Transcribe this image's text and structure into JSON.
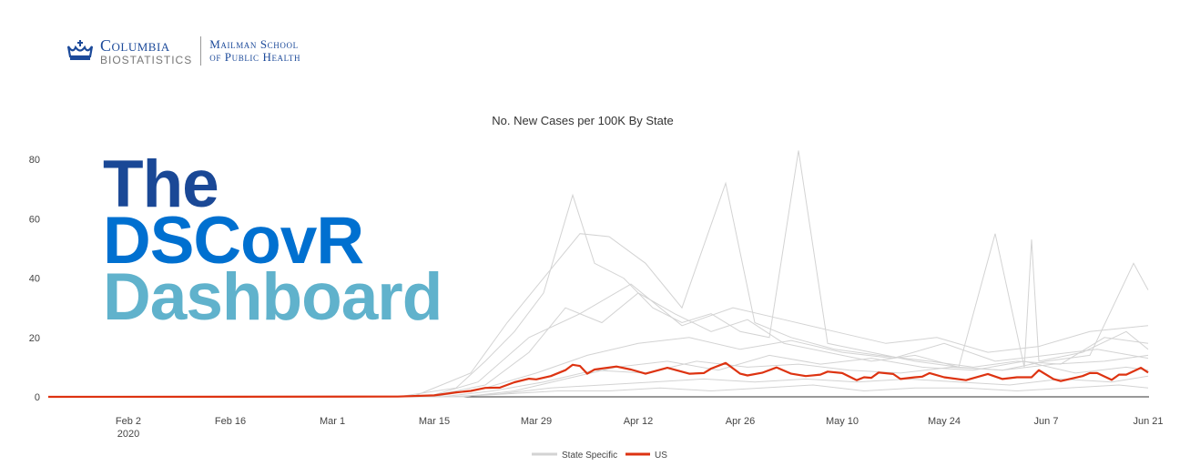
{
  "logo": {
    "university": "Columbia",
    "department": "BIOSTATISTICS",
    "school_line1": "Mailman School",
    "school_line2": "of Public Health"
  },
  "overlay": {
    "line1": "The",
    "line2": "DSCovR",
    "line3": "Dashboard",
    "colors": [
      "#1a4896",
      "#0070d0",
      "#60b2cc"
    ]
  },
  "chart_data": {
    "type": "line",
    "title": "No. New Cases per 100K By State",
    "xlabel": "",
    "ylabel": "",
    "xlim": [
      "2020-01-22",
      "2020-06-21"
    ],
    "ylim": [
      0,
      85
    ],
    "y_ticks": [
      0,
      20,
      40,
      60,
      80
    ],
    "x_ticks": [
      {
        "date": "2020-02-02",
        "label": "Feb 2",
        "sublabel": "2020"
      },
      {
        "date": "2020-02-16",
        "label": "Feb 16"
      },
      {
        "date": "2020-03-01",
        "label": "Mar 1"
      },
      {
        "date": "2020-03-15",
        "label": "Mar 15"
      },
      {
        "date": "2020-03-29",
        "label": "Mar 29"
      },
      {
        "date": "2020-04-12",
        "label": "Apr 12"
      },
      {
        "date": "2020-04-26",
        "label": "Apr 26"
      },
      {
        "date": "2020-05-10",
        "label": "May 10"
      },
      {
        "date": "2020-05-24",
        "label": "May 24"
      },
      {
        "date": "2020-06-07",
        "label": "Jun 7"
      },
      {
        "date": "2020-06-21",
        "label": "Jun 21"
      }
    ],
    "grid": false,
    "legend_position": "bottom",
    "legend": [
      {
        "name": "State Specific",
        "color": "#d3d3d3"
      },
      {
        "name": "US",
        "color": "#dd3311"
      }
    ],
    "state_series": [
      {
        "x": [
          "2020-01-22",
          "2020-03-10",
          "2020-03-18",
          "2020-03-22",
          "2020-03-26",
          "2020-03-30",
          "2020-04-03",
          "2020-04-06",
          "2020-04-10",
          "2020-04-14",
          "2020-04-18",
          "2020-04-22",
          "2020-04-26",
          "2020-04-30",
          "2020-05-04",
          "2020-05-08",
          "2020-05-14",
          "2020-05-20",
          "2020-05-26",
          "2020-06-01",
          "2020-06-07",
          "2020-06-13",
          "2020-06-19",
          "2020-06-21"
        ],
        "y": [
          0,
          0,
          3,
          12,
          22,
          35,
          68,
          45,
          40,
          30,
          25,
          28,
          22,
          20,
          83,
          18,
          15,
          12,
          10,
          9,
          12,
          14,
          45,
          36
        ]
      },
      {
        "x": [
          "2020-01-22",
          "2020-03-12",
          "2020-03-20",
          "2020-03-25",
          "2020-03-30",
          "2020-04-04",
          "2020-04-08",
          "2020-04-13",
          "2020-04-18",
          "2020-04-24",
          "2020-04-28",
          "2020-05-03",
          "2020-05-09",
          "2020-05-15",
          "2020-05-22",
          "2020-05-28",
          "2020-06-03",
          "2020-06-09",
          "2020-06-15",
          "2020-06-21"
        ],
        "y": [
          0,
          0,
          8,
          25,
          40,
          55,
          54,
          45,
          30,
          72,
          25,
          20,
          16,
          14,
          12,
          10,
          12,
          11,
          20,
          18
        ]
      },
      {
        "x": [
          "2020-01-22",
          "2020-03-14",
          "2020-03-22",
          "2020-03-28",
          "2020-04-02",
          "2020-04-07",
          "2020-04-12",
          "2020-04-17",
          "2020-04-22",
          "2020-04-27",
          "2020-05-02",
          "2020-05-08",
          "2020-05-14",
          "2020-05-20",
          "2020-05-26",
          "2020-05-31",
          "2020-06-04",
          "2020-06-05",
          "2020-06-06",
          "2020-06-12",
          "2020-06-18",
          "2020-06-21"
        ],
        "y": [
          0,
          0,
          4,
          15,
          30,
          25,
          35,
          28,
          22,
          26,
          18,
          15,
          12,
          14,
          10,
          55,
          10,
          53,
          12,
          15,
          22,
          16
        ]
      },
      {
        "x": [
          "2020-01-22",
          "2020-03-15",
          "2020-03-22",
          "2020-03-29",
          "2020-04-05",
          "2020-04-12",
          "2020-04-19",
          "2020-04-26",
          "2020-05-03",
          "2020-05-10",
          "2020-05-17",
          "2020-05-24",
          "2020-05-31",
          "2020-06-07",
          "2020-06-14",
          "2020-06-21"
        ],
        "y": [
          0,
          0,
          3,
          8,
          14,
          18,
          20,
          16,
          19,
          15,
          13,
          18,
          12,
          14,
          16,
          13
        ]
      },
      {
        "x": [
          "2020-01-22",
          "2020-03-16",
          "2020-03-23",
          "2020-03-30",
          "2020-04-06",
          "2020-04-13",
          "2020-04-20",
          "2020-04-27",
          "2020-05-04",
          "2020-05-11",
          "2020-05-18",
          "2020-05-25",
          "2020-06-01",
          "2020-06-08",
          "2020-06-15",
          "2020-06-21"
        ],
        "y": [
          0,
          0,
          2,
          5,
          9,
          8,
          12,
          10,
          11,
          9,
          8,
          10,
          9,
          11,
          12,
          14
        ]
      },
      {
        "x": [
          "2020-01-22",
          "2020-03-17",
          "2020-03-24",
          "2020-03-31",
          "2020-04-07",
          "2020-04-14",
          "2020-04-21",
          "2020-04-28",
          "2020-05-05",
          "2020-05-12",
          "2020-05-19",
          "2020-05-26",
          "2020-06-02",
          "2020-06-09",
          "2020-06-16",
          "2020-06-21"
        ],
        "y": [
          0,
          0,
          1,
          3,
          4,
          5,
          6,
          5,
          6,
          5,
          6,
          5,
          4,
          6,
          5,
          7
        ]
      },
      {
        "x": [
          "2020-01-22",
          "2020-03-18",
          "2020-03-25",
          "2020-04-01",
          "2020-04-08",
          "2020-04-15",
          "2020-04-22",
          "2020-04-29",
          "2020-05-06",
          "2020-05-13",
          "2020-05-20",
          "2020-05-27",
          "2020-06-03",
          "2020-06-10",
          "2020-06-17",
          "2020-06-21"
        ],
        "y": [
          0,
          0,
          1,
          2,
          2,
          3,
          2,
          3,
          4,
          2,
          3,
          3,
          2,
          3,
          4,
          3
        ]
      },
      {
        "x": [
          "2020-01-22",
          "2020-03-14",
          "2020-03-21",
          "2020-03-28",
          "2020-04-04",
          "2020-04-11",
          "2020-04-18",
          "2020-04-25",
          "2020-05-02",
          "2020-05-09",
          "2020-05-16",
          "2020-05-23",
          "2020-05-30",
          "2020-06-06",
          "2020-06-13",
          "2020-06-21"
        ],
        "y": [
          0,
          0,
          5,
          20,
          28,
          38,
          24,
          30,
          26,
          22,
          18,
          20,
          15,
          17,
          22,
          24
        ]
      },
      {
        "x": [
          "2020-01-22",
          "2020-03-19",
          "2020-03-26",
          "2020-04-02",
          "2020-04-09",
          "2020-04-16",
          "2020-04-23",
          "2020-04-30",
          "2020-05-07",
          "2020-05-14",
          "2020-05-21",
          "2020-05-28",
          "2020-06-04",
          "2020-06-11",
          "2020-06-18",
          "2020-06-21"
        ],
        "y": [
          0,
          0,
          2,
          6,
          10,
          12,
          9,
          14,
          11,
          13,
          10,
          9,
          12,
          8,
          10,
          9
        ]
      }
    ],
    "series": [
      {
        "name": "US",
        "x": [
          "2020-01-22",
          "2020-03-10",
          "2020-03-15",
          "2020-03-18",
          "2020-03-20",
          "2020-03-22",
          "2020-03-24",
          "2020-03-26",
          "2020-03-28",
          "2020-03-29",
          "2020-03-31",
          "2020-04-02",
          "2020-04-03",
          "2020-04-04",
          "2020-04-05",
          "2020-04-06",
          "2020-04-09",
          "2020-04-11",
          "2020-04-13",
          "2020-04-16",
          "2020-04-19",
          "2020-04-21",
          "2020-04-22",
          "2020-04-24",
          "2020-04-26",
          "2020-04-27",
          "2020-04-29",
          "2020-05-01",
          "2020-05-03",
          "2020-05-05",
          "2020-05-07",
          "2020-05-08",
          "2020-05-10",
          "2020-05-12",
          "2020-05-13",
          "2020-05-14",
          "2020-05-15",
          "2020-05-17",
          "2020-05-18",
          "2020-05-20",
          "2020-05-21",
          "2020-05-22",
          "2020-05-24",
          "2020-05-27",
          "2020-05-30",
          "2020-06-01",
          "2020-06-03",
          "2020-06-05",
          "2020-06-06",
          "2020-06-08",
          "2020-06-09",
          "2020-06-12",
          "2020-06-13",
          "2020-06-14",
          "2020-06-16",
          "2020-06-17",
          "2020-06-18",
          "2020-06-20",
          "2020-06-21"
        ],
        "y": [
          0,
          0.1,
          0.5,
          1.5,
          2,
          3,
          3.1,
          4.9,
          6.1,
          5.9,
          7,
          9,
          10.8,
          10.4,
          7.8,
          9.2,
          10.2,
          9.2,
          7.8,
          9.8,
          7.8,
          8,
          9.5,
          11.4,
          7.8,
          7.2,
          8.1,
          9.9,
          7.8,
          7,
          7.5,
          8.5,
          8,
          5.6,
          6.6,
          6.4,
          8.2,
          7.7,
          6,
          6.6,
          6.8,
          8,
          6.6,
          5.6,
          7.7,
          6,
          6.6,
          6.6,
          9,
          6,
          5.3,
          7,
          8,
          8,
          5.7,
          7.5,
          7.5,
          9.8,
          8.2
        ]
      }
    ]
  }
}
